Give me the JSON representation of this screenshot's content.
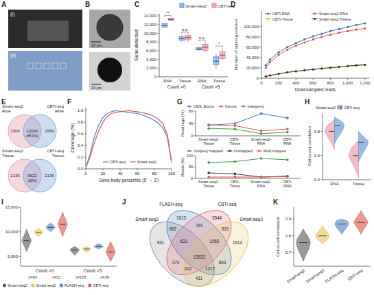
{
  "chart_data": [
    {
      "type": "image",
      "panel": "A",
      "labels": [
        "(i)",
        "(ii)"
      ]
    },
    {
      "type": "image",
      "panel": "B",
      "labels": [
        "10 μm",
        "10 μm"
      ]
    },
    {
      "type": "box",
      "panel": "C",
      "y_label": "Gene detected",
      "categories": [
        "RNA",
        "Tissue",
        "RNA",
        "Tissue"
      ],
      "group_labels": [
        "Count >0",
        "Count >5"
      ],
      "ylim": [
        0,
        14500
      ],
      "yticks": [
        0,
        {
          "value": 2000,
          "label": "2,000"
        },
        {
          "value": 4000,
          "label": "4,000"
        },
        {
          "value": 6000,
          "label": "6,000"
        },
        {
          "value": 8000,
          "label": "8,000"
        },
        {
          "value": 10000,
          "label": "10,000"
        },
        {
          "value": 12000,
          "label": "12,000"
        },
        {
          "value": 14000,
          "label": "14,000"
        }
      ],
      "series": [
        {
          "name": "Smart-seq2",
          "color": "#4f8bd6",
          "min": [
            11200,
            8000,
            6000,
            1800
          ],
          "q1": [
            11400,
            8400,
            6200,
            2800
          ],
          "median": [
            11800,
            8800,
            6400,
            3600
          ],
          "q3": [
            12200,
            9200,
            6700,
            4600
          ],
          "max": [
            12400,
            9600,
            6800,
            5300
          ]
        },
        {
          "name": "CBTi-seq",
          "color": "#e07890",
          "min": [
            12800,
            8000,
            5700,
            3800
          ],
          "q1": [
            13000,
            8500,
            6000,
            4200
          ],
          "median": [
            13200,
            9000,
            6800,
            5000
          ],
          "q3": [
            13500,
            9500,
            7500,
            5800
          ],
          "max": [
            13600,
            9800,
            8000,
            6600
          ]
        }
      ],
      "annotations": [
        "**",
        "n.s.",
        "n.s.",
        "*"
      ],
      "legend": "top"
    },
    {
      "type": "line",
      "panel": "D",
      "x_label": "Downsampled reads",
      "y_label": "Number of splicing junction",
      "x": [
        50,
        100,
        200,
        300,
        400,
        500,
        600,
        700,
        800,
        900,
        1000,
        1100,
        1200
      ],
      "xlim": [
        0,
        1250
      ],
      "xticks": [
        0,
        200,
        400,
        600,
        800,
        {
          "value": 1000,
          "label": "1,000"
        },
        {
          "value": 1200,
          "label": "1,200"
        }
      ],
      "ylim": [
        0,
        130000
      ],
      "yticks": [
        0,
        {
          "value": 20000,
          "label": "20,000"
        },
        {
          "value": 40000,
          "label": "40,000"
        },
        {
          "value": 60000,
          "label": "60,000"
        },
        {
          "value": 80000,
          "label": "80,000"
        },
        {
          "value": 100000,
          "label": "100,000"
        }
      ],
      "series": [
        {
          "name": "CBTi-RNA",
          "color": "#3f6fb5",
          "values": [
            25000,
            36000,
            50000,
            60000,
            68000,
            75000,
            81000,
            86000,
            91000,
            95000,
            99000,
            103000,
            106000
          ]
        },
        {
          "name": "Smart-seq2-RNA",
          "color": "#d9534f",
          "values": [
            20000,
            31000,
            45000,
            55000,
            63000,
            69000,
            75000,
            80000,
            84000,
            88000,
            91000,
            94000,
            96000
          ]
        },
        {
          "name": "CBTi-Tissue",
          "color": "#f0a830",
          "values": [
            3000,
            5000,
            8000,
            11000,
            13000,
            15000,
            17000,
            18500,
            20000,
            21500,
            23000,
            24500,
            25500
          ]
        },
        {
          "name": "Smart-seq2-Tissue",
          "color": "#333333",
          "values": [
            3500,
            5500,
            8500,
            11500,
            13500,
            15500,
            17000,
            18800,
            20500,
            22000,
            23500,
            25000,
            26000
          ]
        }
      ],
      "marker": "circle",
      "legend": "upper left"
    },
    {
      "type": "venn",
      "panel": "E",
      "sets": [
        {
          "name": "Smart-seq2 RNA",
          "color": "#e58fa4"
        },
        {
          "name": "CBTi-seq RNA",
          "color": "#6fa0dc"
        }
      ],
      "values": [
        1509,
        12060,
        2589
      ],
      "annotations": [
        "(85.9%)"
      ]
    },
    {
      "type": "venn",
      "sets": [
        {
          "name": "Smart-seq2 Tissue",
          "color": "#e58fa4"
        },
        {
          "name": "CBTi-seq Tissue",
          "color": "#6fa0dc"
        }
      ],
      "values": [
        2136,
        9622,
        2136
      ],
      "annotations": [
        "(62%)"
      ]
    },
    {
      "type": "line",
      "panel": "F",
      "x_label": "Gene body percentile (5' → 3')",
      "y_label": "Coverage (%)",
      "x": [
        0,
        5,
        10,
        15,
        20,
        25,
        30,
        35,
        40,
        45,
        50,
        55,
        60,
        65,
        70,
        75,
        80,
        85,
        90,
        95,
        100
      ],
      "xlim": [
        0,
        100
      ],
      "xticks": [
        0,
        20,
        40,
        60,
        80,
        100
      ],
      "ylim": [
        0,
        1.05
      ],
      "yticks": [
        {
          "value": 0,
          "label": "0.0"
        },
        0.2,
        0.4,
        0.6,
        0.8,
        {
          "value": 1,
          "label": "1.0"
        }
      ],
      "series": [
        {
          "name": "CBTi-seq",
          "color": "#4f8bd6",
          "values": [
            0.02,
            0.25,
            0.55,
            0.75,
            0.88,
            0.95,
            0.98,
            1.0,
            0.99,
            0.98,
            0.97,
            0.96,
            0.95,
            0.93,
            0.9,
            0.87,
            0.83,
            0.78,
            0.7,
            0.55,
            0.1
          ]
        },
        {
          "name": "Smart-seq2",
          "color": "#e0605a",
          "values": [
            0.02,
            0.2,
            0.45,
            0.65,
            0.8,
            0.9,
            0.95,
            0.97,
            0.98,
            0.99,
            1.0,
            0.99,
            0.98,
            0.97,
            0.95,
            0.93,
            0.9,
            0.85,
            0.77,
            0.6,
            0.12
          ]
        }
      ],
      "legend": "bottom"
    },
    {
      "type": "line",
      "panel": "G",
      "y_label": "Read tags (%)",
      "categories": [
        "Smart-seq2-Tissue",
        "CBTi-Tissue",
        "Smart-seq2-RNA",
        "CBTi-RNA"
      ],
      "ylim": [
        0,
        80
      ],
      "yticks": [
        0,
        40,
        80
      ],
      "series": [
        {
          "name": "CDS_Exons",
          "color": "#3f6fb5",
          "values": [
            34,
            40,
            72,
            58
          ]
        },
        {
          "name": "Introns",
          "color": "#d9534f",
          "values": [
            36,
            33,
            16,
            22
          ]
        },
        {
          "name": "Intergenic",
          "color": "#3a9a4a",
          "values": [
            24,
            22,
            7,
            12
          ]
        }
      ],
      "marker": "circle",
      "legend": "top"
    },
    {
      "type": "line",
      "y_label": "Reads (%)",
      "categories": [
        "Smart-seq2-Tissue",
        "CBTi-Tissue",
        "Smart-seq2-RNA",
        "CBTi-RNA"
      ],
      "ylim": [
        0,
        100
      ],
      "yticks": [
        0,
        50,
        100
      ],
      "series": [
        {
          "name": "Uniquely mapped",
          "color": "#3a9a4a",
          "values": [
            70,
            74,
            88,
            82
          ]
        },
        {
          "name": "Unmapped",
          "color": "#333333",
          "values": [
            24,
            20,
            6,
            10
          ]
        },
        {
          "name": "Multi mapped",
          "color": "#d9534f",
          "values": [
            6,
            6,
            6,
            8
          ]
        }
      ],
      "marker": "circle",
      "legend": "top"
    },
    {
      "type": "violin",
      "panel": "H",
      "y_label": "Cell-to-cell correlation",
      "categories": [
        "RNA",
        "Tissue"
      ],
      "ylim": [
        0.4,
        0.95
      ],
      "yticks": [
        0.4,
        0.6,
        0.8
      ],
      "series": [
        {
          "name": "Smart-seq2",
          "color": "#e58fa4",
          "min": [
            0.65,
            0.42
          ],
          "q1": [
            0.76,
            0.55
          ],
          "median": [
            0.8,
            0.6
          ],
          "q3": [
            0.85,
            0.66
          ],
          "max": [
            0.9,
            0.73
          ]
        },
        {
          "name": "CBTi-seq",
          "color": "#5b8fd1",
          "min": [
            0.7,
            0.55
          ],
          "q1": [
            0.8,
            0.66
          ],
          "median": [
            0.85,
            0.71
          ],
          "q3": [
            0.88,
            0.74
          ],
          "max": [
            0.92,
            0.8
          ]
        }
      ],
      "legend": "top"
    },
    {
      "type": "violin",
      "panel": "I",
      "categories": [
        "Count >0",
        "Count >5"
      ],
      "ylim": [
        3000,
        15000
      ],
      "yticks": [
        {
          "value": 5000,
          "label": "5,000"
        },
        {
          "value": 10000,
          "label": "10,000"
        },
        {
          "value": 15000,
          "label": "15,000"
        }
      ],
      "series": [
        {
          "name": "Smart-seq2",
          "color": "#555555",
          "min": [
            6000,
            5200
          ],
          "q1": [
            7600,
            6000
          ],
          "median": [
            8200,
            6300
          ],
          "q3": [
            8800,
            6600
          ],
          "max": [
            10500,
            7000
          ]
        },
        {
          "name": "Smart-seq3",
          "color": "#e8c15a",
          "min": [
            9000,
            5800
          ],
          "q1": [
            9600,
            6300
          ],
          "median": [
            9900,
            6500
          ],
          "q3": [
            10200,
            6700
          ],
          "max": [
            10700,
            7000
          ]
        },
        {
          "name": "FLASH-seq",
          "color": "#4f7fc0",
          "min": [
            10000,
            6500
          ],
          "q1": [
            10600,
            6800
          ],
          "median": [
            10900,
            7000
          ],
          "q3": [
            11200,
            7200
          ],
          "max": [
            11800,
            7600
          ]
        },
        {
          "name": "CBTi-seq",
          "color": "#d9534f",
          "min": [
            9000,
            3900
          ],
          "q1": [
            10800,
            5300
          ],
          "median": [
            11500,
            5900
          ],
          "q3": [
            12300,
            6600
          ],
          "max": [
            14000,
            8000
          ]
        }
      ],
      "annotations": [
        "n=60",
        "n=51",
        "n=105",
        "n=38"
      ],
      "legend": "bottom"
    },
    {
      "type": "venn",
      "panel": "J",
      "sets": [
        {
          "name": "Smart-seq2",
          "color": "#888888"
        },
        {
          "name": "FLASH-seq",
          "color": "#4f7fc0"
        },
        {
          "name": "CBTi-seq",
          "color": "#e06070"
        },
        {
          "name": "Smart-seq3",
          "color": "#e8c15a"
        }
      ],
      "regions": [
        {
          "sets": [
            0
          ],
          "value": 931
        },
        {
          "sets": [
            1
          ],
          "value": 1613
        },
        {
          "sets": [
            2
          ],
          "value": 3544
        },
        {
          "sets": [
            3
          ],
          "value": 1914
        },
        {
          "sets": [
            0,
            1
          ],
          "value": 662
        },
        {
          "sets": [
            1,
            2
          ],
          "value": 764
        },
        {
          "sets": [
            2,
            3
          ],
          "value": 816
        },
        {
          "sets": [
            0,
            2
          ],
          "value": 370
        },
        {
          "sets": [
            1,
            3
          ],
          "value": 863
        },
        {
          "sets": [
            0,
            3
          ],
          "value": 411
        },
        {
          "sets": [
            0,
            1,
            2
          ],
          "value": 631
        },
        {
          "sets": [
            1,
            2,
            3
          ],
          "value": 1058
        },
        {
          "sets": [
            0,
            2,
            3
          ],
          "value": 412
        },
        {
          "sets": [
            0,
            1,
            3
          ],
          "value": 1217
        },
        {
          "sets": [
            0,
            1,
            2,
            3
          ],
          "value": 13533
        }
      ]
    },
    {
      "type": "violin",
      "panel": "K",
      "y_label": "Cell-to-cell correlation",
      "categories": [
        "Smart-seq2",
        "Smart-seq3",
        "FLASH-seq",
        "CBTi-seq"
      ],
      "ylim": [
        0.62,
        0.97
      ],
      "yticks": [
        0.7,
        0.8,
        0.9
      ],
      "colors": [
        "#555555",
        "#e8c15a",
        "#4f7fc0",
        "#d9534f"
      ],
      "series": [
        {
          "min": [
            0.65,
            0.75,
            0.81,
            0.81
          ],
          "q1": [
            0.72,
            0.78,
            0.85,
            0.86
          ],
          "median": [
            0.76,
            0.8,
            0.87,
            0.88
          ],
          "q3": [
            0.79,
            0.82,
            0.89,
            0.9
          ],
          "max": [
            0.84,
            0.86,
            0.9,
            0.95
          ]
        }
      ]
    }
  ]
}
